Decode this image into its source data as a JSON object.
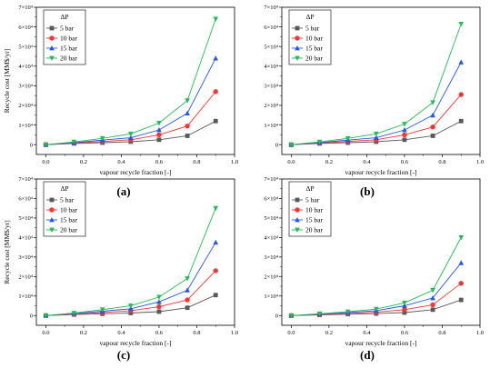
{
  "figure": {
    "series_colors": [
      "#595959",
      "#ff3333",
      "#2255ee",
      "#22bb55"
    ],
    "series_markers": [
      "square",
      "circle",
      "triangle-up",
      "triangle-down"
    ]
  },
  "chart_data": [
    {
      "panel_label": "(a)",
      "type": "line",
      "xlabel": "vapour recycle fraction [-]",
      "ylabel": "Recycle cost [MM$/yr]",
      "x": [
        0.0,
        0.15,
        0.3,
        0.45,
        0.6,
        0.75,
        0.9
      ],
      "xlim": [
        -0.05,
        1.0
      ],
      "xticks": [
        "0.0",
        "0.2",
        "0.4",
        "0.6",
        "0.8",
        "1.0"
      ],
      "ylim": [
        -5000,
        70000
      ],
      "yticks": [
        "0",
        "1×10⁴",
        "2×10⁴",
        "3×10⁴",
        "4×10⁴",
        "5×10⁴",
        "6×10⁴",
        "7×10⁴"
      ],
      "legend": {
        "title": "ΔP",
        "placement": "top-left"
      },
      "series": [
        {
          "name": "5 bar",
          "values": [
            0,
            600,
            1000,
            1500,
            2500,
            4500,
            12000
          ]
        },
        {
          "name": "10 bar",
          "values": [
            0,
            800,
            1600,
            2500,
            5000,
            9500,
            27000
          ]
        },
        {
          "name": "15 bar",
          "values": [
            0,
            1000,
            2300,
            3500,
            7500,
            16000,
            44000
          ]
        },
        {
          "name": "20 bar",
          "values": [
            0,
            1400,
            3200,
            5500,
            11000,
            22500,
            64000
          ]
        }
      ]
    },
    {
      "panel_label": "(b)",
      "type": "line",
      "xlabel": "vapour recycle fraction [-]",
      "ylabel": "",
      "x": [
        0.0,
        0.15,
        0.3,
        0.45,
        0.6,
        0.75,
        0.9
      ],
      "xlim": [
        -0.05,
        1.0
      ],
      "xticks": [
        "0.0",
        "0.2",
        "0.4",
        "0.6",
        "0.8",
        "1.0"
      ],
      "ylim": [
        -5000,
        70000
      ],
      "yticks": [
        "0",
        "1×10⁴",
        "2×10⁴",
        "3×10⁴",
        "4×10⁴",
        "5×10⁴",
        "6×10⁴",
        "7×10⁴"
      ],
      "legend": {
        "title": "ΔP",
        "placement": "top-left"
      },
      "series": [
        {
          "name": "5 bar",
          "values": [
            0,
            600,
            1000,
            1500,
            2500,
            4500,
            12000
          ]
        },
        {
          "name": "10 bar",
          "values": [
            0,
            800,
            1600,
            2500,
            5000,
            9000,
            25500
          ]
        },
        {
          "name": "15 bar",
          "values": [
            0,
            1000,
            2300,
            3500,
            7500,
            15000,
            42000
          ]
        },
        {
          "name": "20 bar",
          "values": [
            0,
            1400,
            3200,
            5500,
            10500,
            21500,
            61500
          ]
        }
      ]
    },
    {
      "panel_label": "(c)",
      "type": "line",
      "xlabel": "vapour recycle fraction [-]",
      "ylabel": "Recycle cost [MM$/yr]",
      "x": [
        0.0,
        0.15,
        0.3,
        0.45,
        0.6,
        0.75,
        0.9
      ],
      "xlim": [
        -0.05,
        1.0
      ],
      "xticks": [
        "0.0",
        "0.2",
        "0.4",
        "0.6",
        "0.8",
        "1.0"
      ],
      "ylim": [
        -5000,
        70000
      ],
      "yticks": [
        "0",
        "1×10⁴",
        "2×10⁴",
        "3×10⁴",
        "4×10⁴",
        "5×10⁴",
        "6×10⁴",
        "7×10⁴"
      ],
      "legend": {
        "title": "ΔP",
        "placement": "top-left"
      },
      "series": [
        {
          "name": "5 bar",
          "values": [
            0,
            500,
            900,
            1300,
            2000,
            4000,
            10500
          ]
        },
        {
          "name": "10 bar",
          "values": [
            0,
            700,
            1500,
            2500,
            4500,
            8000,
            23000
          ]
        },
        {
          "name": "15 bar",
          "values": [
            0,
            1000,
            2200,
            3500,
            7000,
            13000,
            37500
          ]
        },
        {
          "name": "20 bar",
          "values": [
            0,
            1300,
            3000,
            5000,
            9500,
            19000,
            55000
          ]
        }
      ]
    },
    {
      "panel_label": "(d)",
      "type": "line",
      "xlabel": "vapour recycle fraction [-]",
      "ylabel": "",
      "x": [
        0.0,
        0.15,
        0.3,
        0.45,
        0.6,
        0.75,
        0.9
      ],
      "xlim": [
        -0.05,
        1.0
      ],
      "xticks": [
        "0.0",
        "0.2",
        "0.4",
        "0.6",
        "0.8",
        "1.0"
      ],
      "ylim": [
        -5000,
        70000
      ],
      "yticks": [
        "0",
        "1×10⁴",
        "2×10⁴",
        "3×10⁴",
        "4×10⁴",
        "5×10⁴",
        "6×10⁴",
        "7×10⁴"
      ],
      "legend": {
        "title": "ΔP",
        "placement": "top-left"
      },
      "series": [
        {
          "name": "5 bar",
          "values": [
            0,
            300,
            700,
            1000,
            1500,
            3000,
            8000
          ]
        },
        {
          "name": "10 bar",
          "values": [
            0,
            500,
            1000,
            1700,
            3000,
            5500,
            16500
          ]
        },
        {
          "name": "15 bar",
          "values": [
            0,
            700,
            1500,
            2500,
            5000,
            9000,
            27000
          ]
        },
        {
          "name": "20 bar",
          "values": [
            0,
            900,
            2000,
            3300,
            6500,
            13000,
            40000
          ]
        }
      ]
    }
  ]
}
